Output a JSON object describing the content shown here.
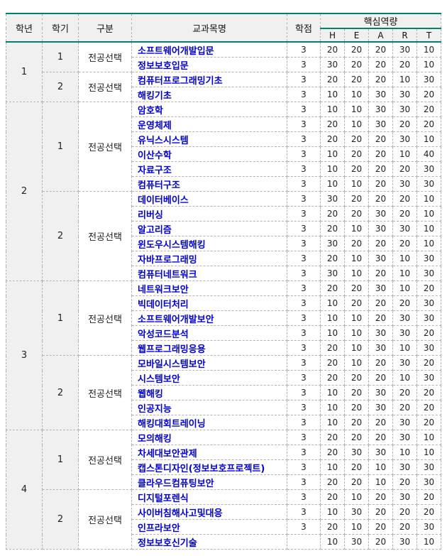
{
  "colors": {
    "accent_teal": "#00806e",
    "dashed_border": "#b2b2b2",
    "header_bg": "#f0f0f0",
    "course_blue": "#0000dd",
    "text": "#1a1a1a"
  },
  "table": {
    "headers": [
      "학년",
      "학기",
      "구분",
      "교과목명",
      "학점"
    ],
    "competency_title": "핵심역량",
    "competency_cols": [
      "H",
      "E",
      "A",
      "R",
      "T"
    ],
    "years": [
      {
        "year": "1",
        "semesters": [
          {
            "semester": "1",
            "category": "전공선택",
            "courses": [
              {
                "name": "소프트웨어개발입문",
                "credits": "3",
                "scores": [
                  "20",
                  "20",
                  "20",
                  "30",
                  "10"
                ]
              },
              {
                "name": "정보보호입문",
                "credits": "3",
                "scores": [
                  "30",
                  "20",
                  "20",
                  "20",
                  "10"
                ]
              }
            ]
          },
          {
            "semester": "2",
            "category": "전공선택",
            "courses": [
              {
                "name": "컴퓨터프로그래밍기초",
                "credits": "3",
                "scores": [
                  "20",
                  "20",
                  "20",
                  "10",
                  "30"
                ]
              },
              {
                "name": "해킹기초",
                "credits": "3",
                "scores": [
                  "10",
                  "10",
                  "30",
                  "30",
                  "20"
                ]
              }
            ]
          }
        ]
      },
      {
        "year": "2",
        "semesters": [
          {
            "semester": "1",
            "category": "전공선택",
            "courses": [
              {
                "name": "암호학",
                "credits": "3",
                "scores": [
                  "10",
                  "10",
                  "30",
                  "30",
                  "20"
                ]
              },
              {
                "name": "운영체제",
                "credits": "3",
                "scores": [
                  "20",
                  "10",
                  "30",
                  "20",
                  "20"
                ]
              },
              {
                "name": "유닉스시스템",
                "credits": "3",
                "scores": [
                  "20",
                  "20",
                  "20",
                  "30",
                  "10"
                ]
              },
              {
                "name": "이산수학",
                "credits": "3",
                "scores": [
                  "10",
                  "20",
                  "20",
                  "10",
                  "40"
                ]
              },
              {
                "name": "자료구조",
                "credits": "3",
                "scores": [
                  "10",
                  "20",
                  "20",
                  "20",
                  "30"
                ]
              },
              {
                "name": "컴퓨터구조",
                "credits": "3",
                "scores": [
                  "10",
                  "10",
                  "20",
                  "30",
                  "30"
                ]
              }
            ]
          },
          {
            "semester": "2",
            "category": "전공선택",
            "courses": [
              {
                "name": "데이터베이스",
                "credits": "3",
                "scores": [
                  "30",
                  "20",
                  "20",
                  "20",
                  "10"
                ]
              },
              {
                "name": "리버싱",
                "credits": "3",
                "scores": [
                  "20",
                  "20",
                  "30",
                  "20",
                  "10"
                ]
              },
              {
                "name": "알고리즘",
                "credits": "3",
                "scores": [
                  "20",
                  "10",
                  "30",
                  "30",
                  "10"
                ]
              },
              {
                "name": "윈도우시스템해킹",
                "credits": "3",
                "scores": [
                  "30",
                  "20",
                  "20",
                  "20",
                  "10"
                ]
              },
              {
                "name": "자바프로그래밍",
                "credits": "3",
                "scores": [
                  "20",
                  "10",
                  "30",
                  "10",
                  "30"
                ]
              },
              {
                "name": "컴퓨터네트워크",
                "credits": "3",
                "scores": [
                  "30",
                  "10",
                  "20",
                  "10",
                  "30"
                ]
              }
            ]
          }
        ]
      },
      {
        "year": "3",
        "semesters": [
          {
            "semester": "1",
            "category": "전공선택",
            "courses": [
              {
                "name": "네트워크보안",
                "credits": "3",
                "scores": [
                  "20",
                  "20",
                  "30",
                  "10",
                  "20"
                ]
              },
              {
                "name": "빅데이터처리",
                "credits": "3",
                "scores": [
                  "10",
                  "20",
                  "20",
                  "20",
                  "30"
                ]
              },
              {
                "name": "소프트웨어개발보안",
                "credits": "3",
                "scores": [
                  "10",
                  "10",
                  "20",
                  "30",
                  "30"
                ]
              },
              {
                "name": "악성코드분석",
                "credits": "3",
                "scores": [
                  "10",
                  "10",
                  "30",
                  "30",
                  "20"
                ]
              },
              {
                "name": "웹프로그래밍응용",
                "credits": "3",
                "scores": [
                  "20",
                  "10",
                  "30",
                  "10",
                  "30"
                ]
              }
            ]
          },
          {
            "semester": "2",
            "category": "전공선택",
            "courses": [
              {
                "name": "모바일시스템보안",
                "credits": "3",
                "scores": [
                  "20",
                  "10",
                  "20",
                  "30",
                  "20"
                ]
              },
              {
                "name": "시스템보안",
                "credits": "3",
                "scores": [
                  "20",
                  "20",
                  "20",
                  "10",
                  "30"
                ]
              },
              {
                "name": "웹해킹",
                "credits": "3",
                "scores": [
                  "10",
                  "20",
                  "30",
                  "20",
                  "20"
                ]
              },
              {
                "name": "인공지능",
                "credits": "3",
                "scores": [
                  "10",
                  "20",
                  "30",
                  "20",
                  "20"
                ]
              },
              {
                "name": "해킹대회트레이닝",
                "credits": "3",
                "scores": [
                  "10",
                  "20",
                  "20",
                  "30",
                  "20"
                ]
              }
            ]
          }
        ]
      },
      {
        "year": "4",
        "semesters": [
          {
            "semester": "1",
            "category": "전공선택",
            "courses": [
              {
                "name": "모의해킹",
                "credits": "3",
                "scores": [
                  "20",
                  "20",
                  "20",
                  "30",
                  "10"
                ]
              },
              {
                "name": "차세대보안관제",
                "credits": "3",
                "scores": [
                  "20",
                  "30",
                  "30",
                  "10",
                  "10"
                ]
              },
              {
                "name": "캡스톤디자인(정보보호프로젝트)",
                "credits": "3",
                "scores": [
                  "10",
                  "20",
                  "10",
                  "30",
                  "30"
                ]
              },
              {
                "name": "클라우드컴퓨팅보안",
                "credits": "3",
                "scores": [
                  "20",
                  "20",
                  "10",
                  "20",
                  "30"
                ]
              }
            ]
          },
          {
            "semester": "2",
            "category": "전공선택",
            "courses": [
              {
                "name": "디지털포렌식",
                "credits": "3",
                "scores": [
                  "20",
                  "10",
                  "20",
                  "30",
                  "20"
                ]
              },
              {
                "name": "사이버침해사고및대응",
                "credits": "3",
                "scores": [
                  "10",
                  "30",
                  "20",
                  "20",
                  "20"
                ]
              },
              {
                "name": "인프라보안",
                "credits": "3",
                "scores": [
                  "20",
                  "10",
                  "20",
                  "20",
                  "30"
                ]
              },
              {
                "name": "정보보호신기술",
                "credits": "",
                "scores": [
                  "10",
                  "30",
                  "20",
                  "30",
                  "10"
                ]
              }
            ]
          }
        ]
      }
    ]
  }
}
